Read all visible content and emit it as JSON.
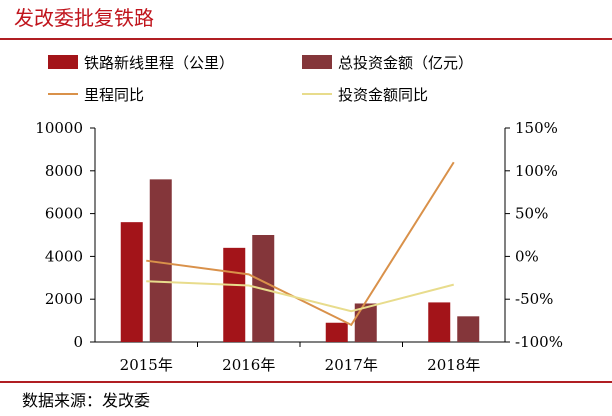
{
  "header": {
    "title": "发改委批复铁路"
  },
  "footer": {
    "source": "数据来源：发改委"
  },
  "chart_data": {
    "type": "bar",
    "categories": [
      "2015年",
      "2016年",
      "2017年",
      "2018年"
    ],
    "series": [
      {
        "name": "铁路新线里程（公里）",
        "kind": "bar",
        "axis": "left",
        "color": "#a31419",
        "values": [
          5600,
          4400,
          900,
          1850
        ]
      },
      {
        "name": "总投资金额（亿元）",
        "kind": "bar",
        "axis": "left",
        "color": "#84363a",
        "values": [
          7600,
          5000,
          1800,
          1200
        ]
      },
      {
        "name": "里程同比",
        "kind": "line",
        "axis": "right",
        "color": "#d9914a",
        "values": [
          -5,
          -21,
          -80,
          110
        ]
      },
      {
        "name": "投资金额同比",
        "kind": "line",
        "axis": "right",
        "color": "#e8dc8c",
        "values": [
          -29,
          -34,
          -64,
          -33
        ]
      }
    ],
    "y_left": {
      "min": 0,
      "max": 10000,
      "ticks": [
        "0",
        "2000",
        "4000",
        "6000",
        "8000",
        "10000"
      ]
    },
    "y_right": {
      "min": -100,
      "max": 150,
      "ticks": [
        "-100%",
        "-50%",
        "0%",
        "50%",
        "100%",
        "150%"
      ]
    },
    "legend": "top",
    "grid": false
  }
}
